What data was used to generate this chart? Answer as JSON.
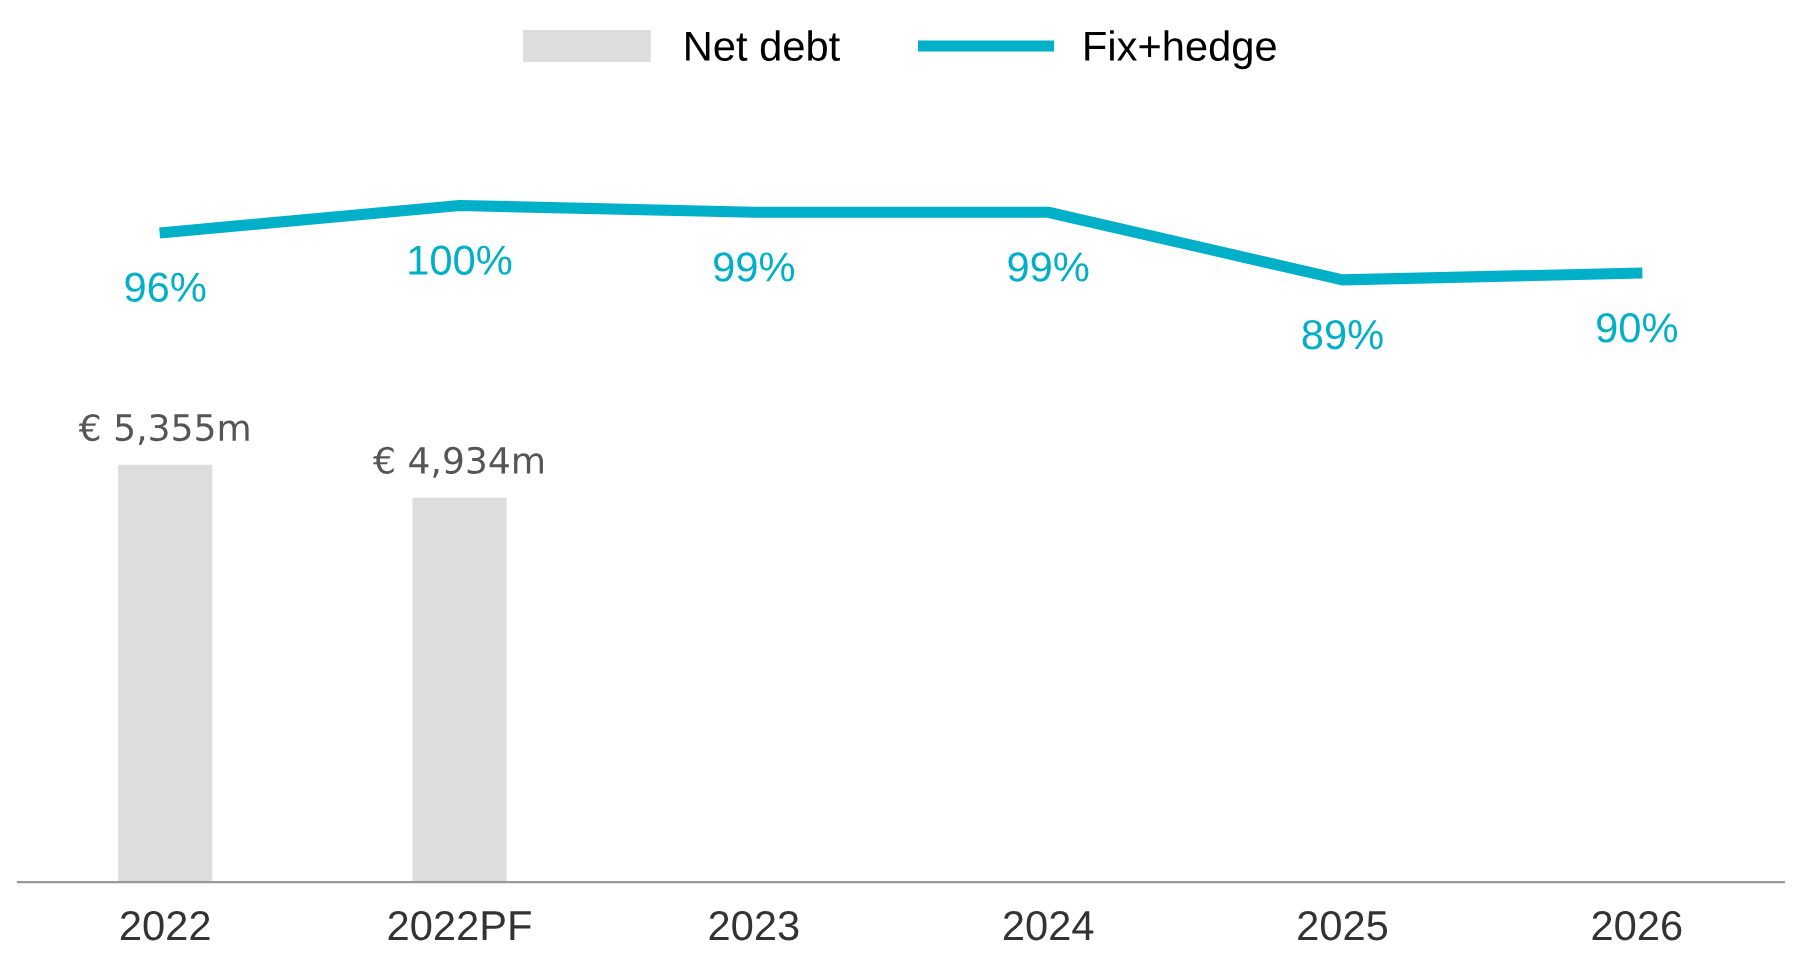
{
  "chart_data": [
    {
      "type": "bar",
      "categories": [
        "2022",
        "2022PF",
        "2023",
        "2024",
        "2025",
        "2026"
      ],
      "series": [
        {
          "name": "Net debt",
          "color": "#dddddd",
          "values": [
            5355,
            4934,
            null,
            null,
            null,
            null
          ],
          "value_labels": [
            "€ 5,355m",
            "€ 4,934m",
            null,
            null,
            null,
            null
          ]
        }
      ],
      "tick_labels": "x",
      "legend": "top",
      "grid": false
    },
    {
      "type": "line",
      "categories": [
        null,
        null,
        null,
        null,
        null,
        null
      ],
      "series": [
        {
          "name": "Fix+hedge",
          "color": "#00b0c8",
          "values": [
            96,
            100,
            99,
            99,
            89,
            90
          ],
          "value_labels": [
            "96%",
            "100%",
            "99%",
            "99%",
            "89%",
            "90%"
          ]
        }
      ],
      "legend": "top",
      "grid": false,
      "marker": "none",
      "line_style": "solid"
    }
  ]
}
